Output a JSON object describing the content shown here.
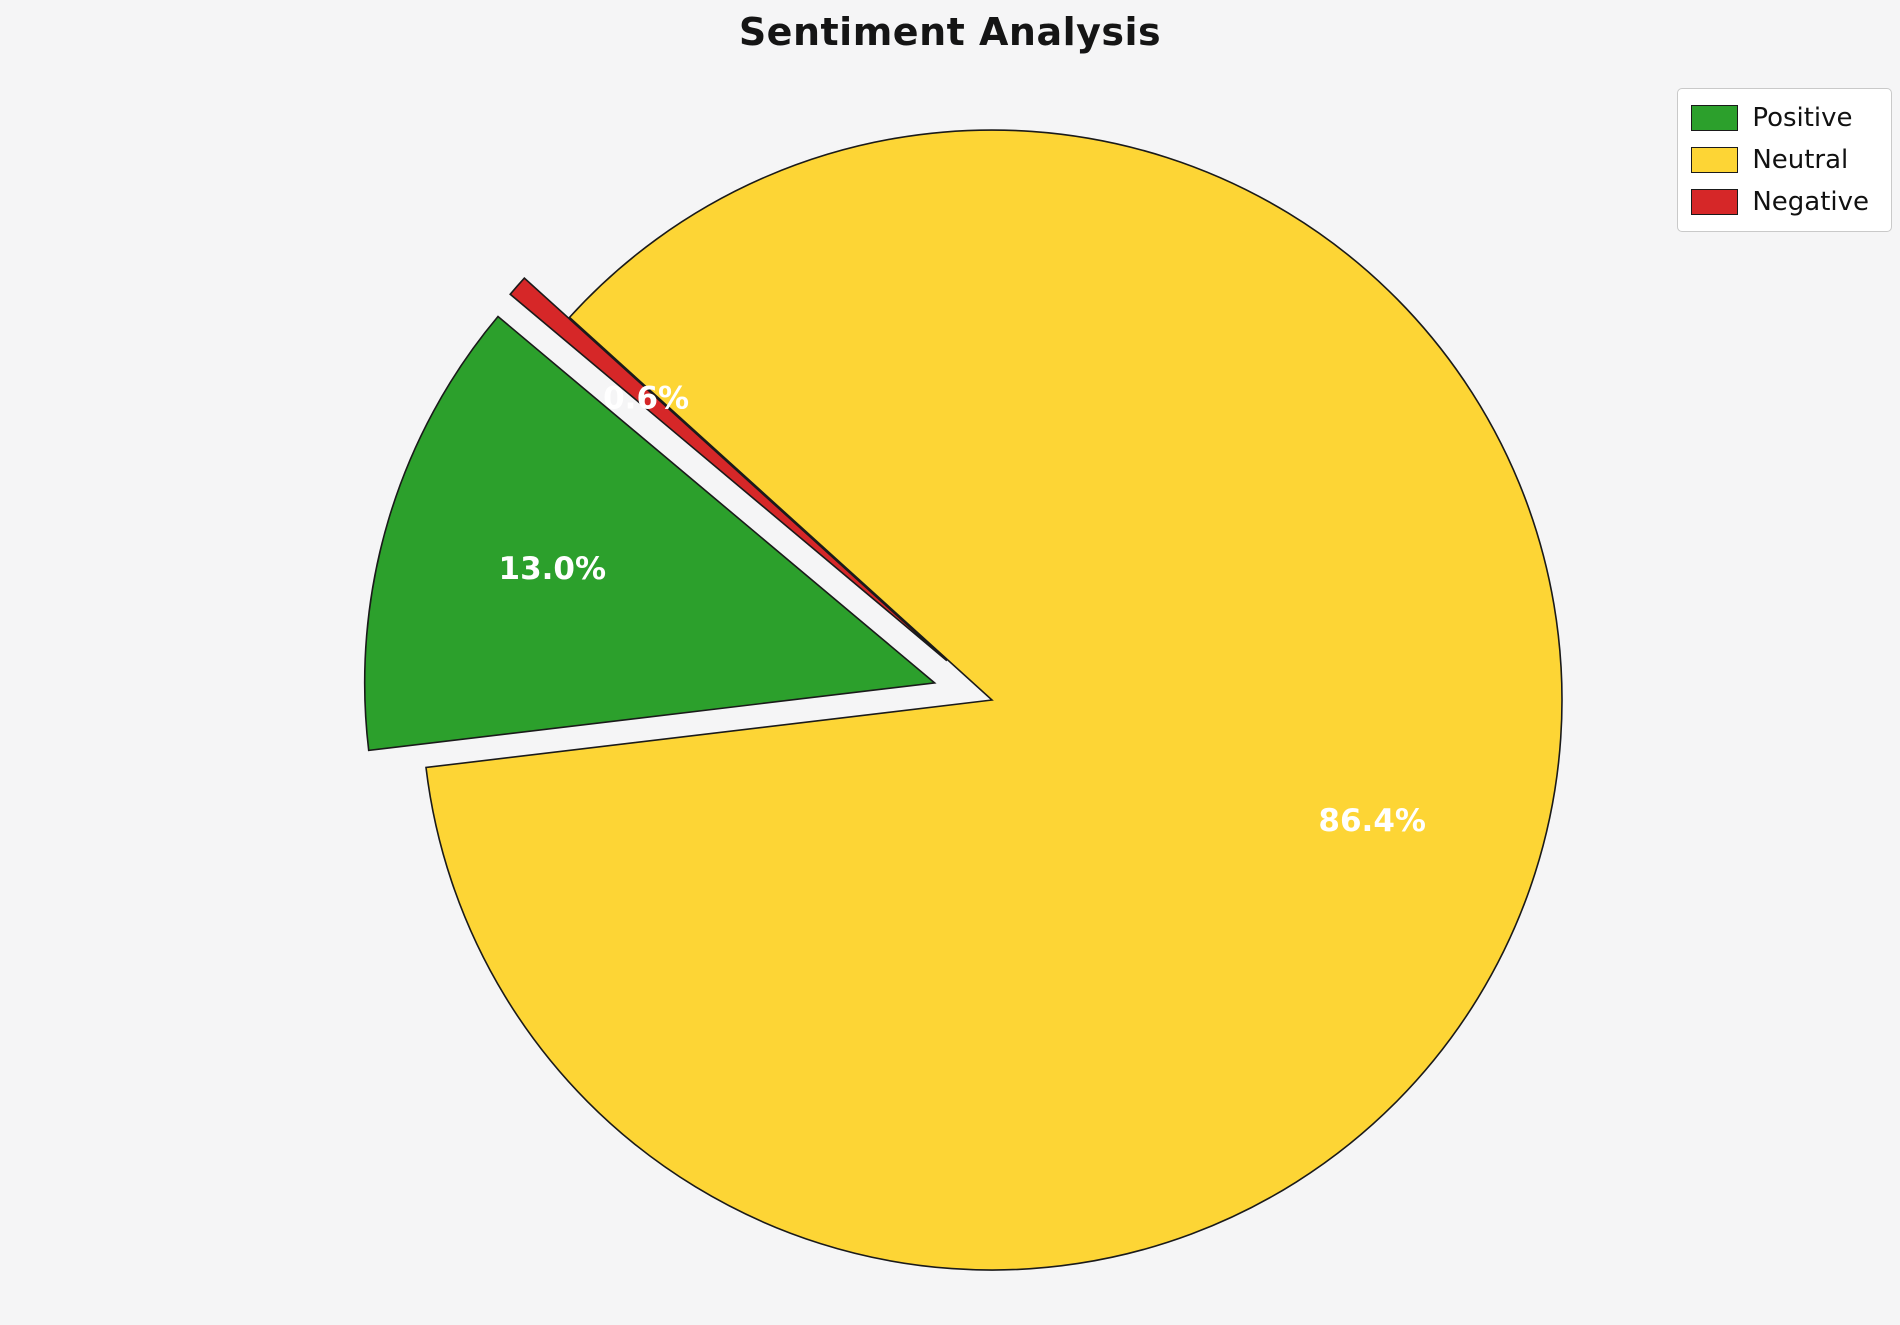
{
  "page": {
    "background_color": "#f5f5f6"
  },
  "title": "Sentiment Analysis",
  "legend": {
    "position": "upper right",
    "items": [
      {
        "label": "Positive",
        "color": "#2ca02c"
      },
      {
        "label": "Neutral",
        "color": "#fdd535"
      },
      {
        "label": "Negative",
        "color": "#d62728"
      }
    ]
  },
  "chart_data": {
    "type": "pie",
    "title": "Sentiment Analysis",
    "labels": [
      "Positive",
      "Neutral",
      "Negative"
    ],
    "values": [
      13.0,
      86.4,
      0.6
    ],
    "percent_labels": [
      "13.0%",
      "86.4%",
      "0.6%"
    ],
    "colors": [
      "#2ca02c",
      "#fdd535",
      "#d62728"
    ],
    "explode": [
      0.105,
      0,
      0.105
    ],
    "start_angle": 140,
    "counterclock": true,
    "pctdistance": 0.7,
    "label_color": "#ffffff",
    "edge_color": "#1a1a1a",
    "legend_position": "upper right",
    "background": "#f5f5f6"
  }
}
